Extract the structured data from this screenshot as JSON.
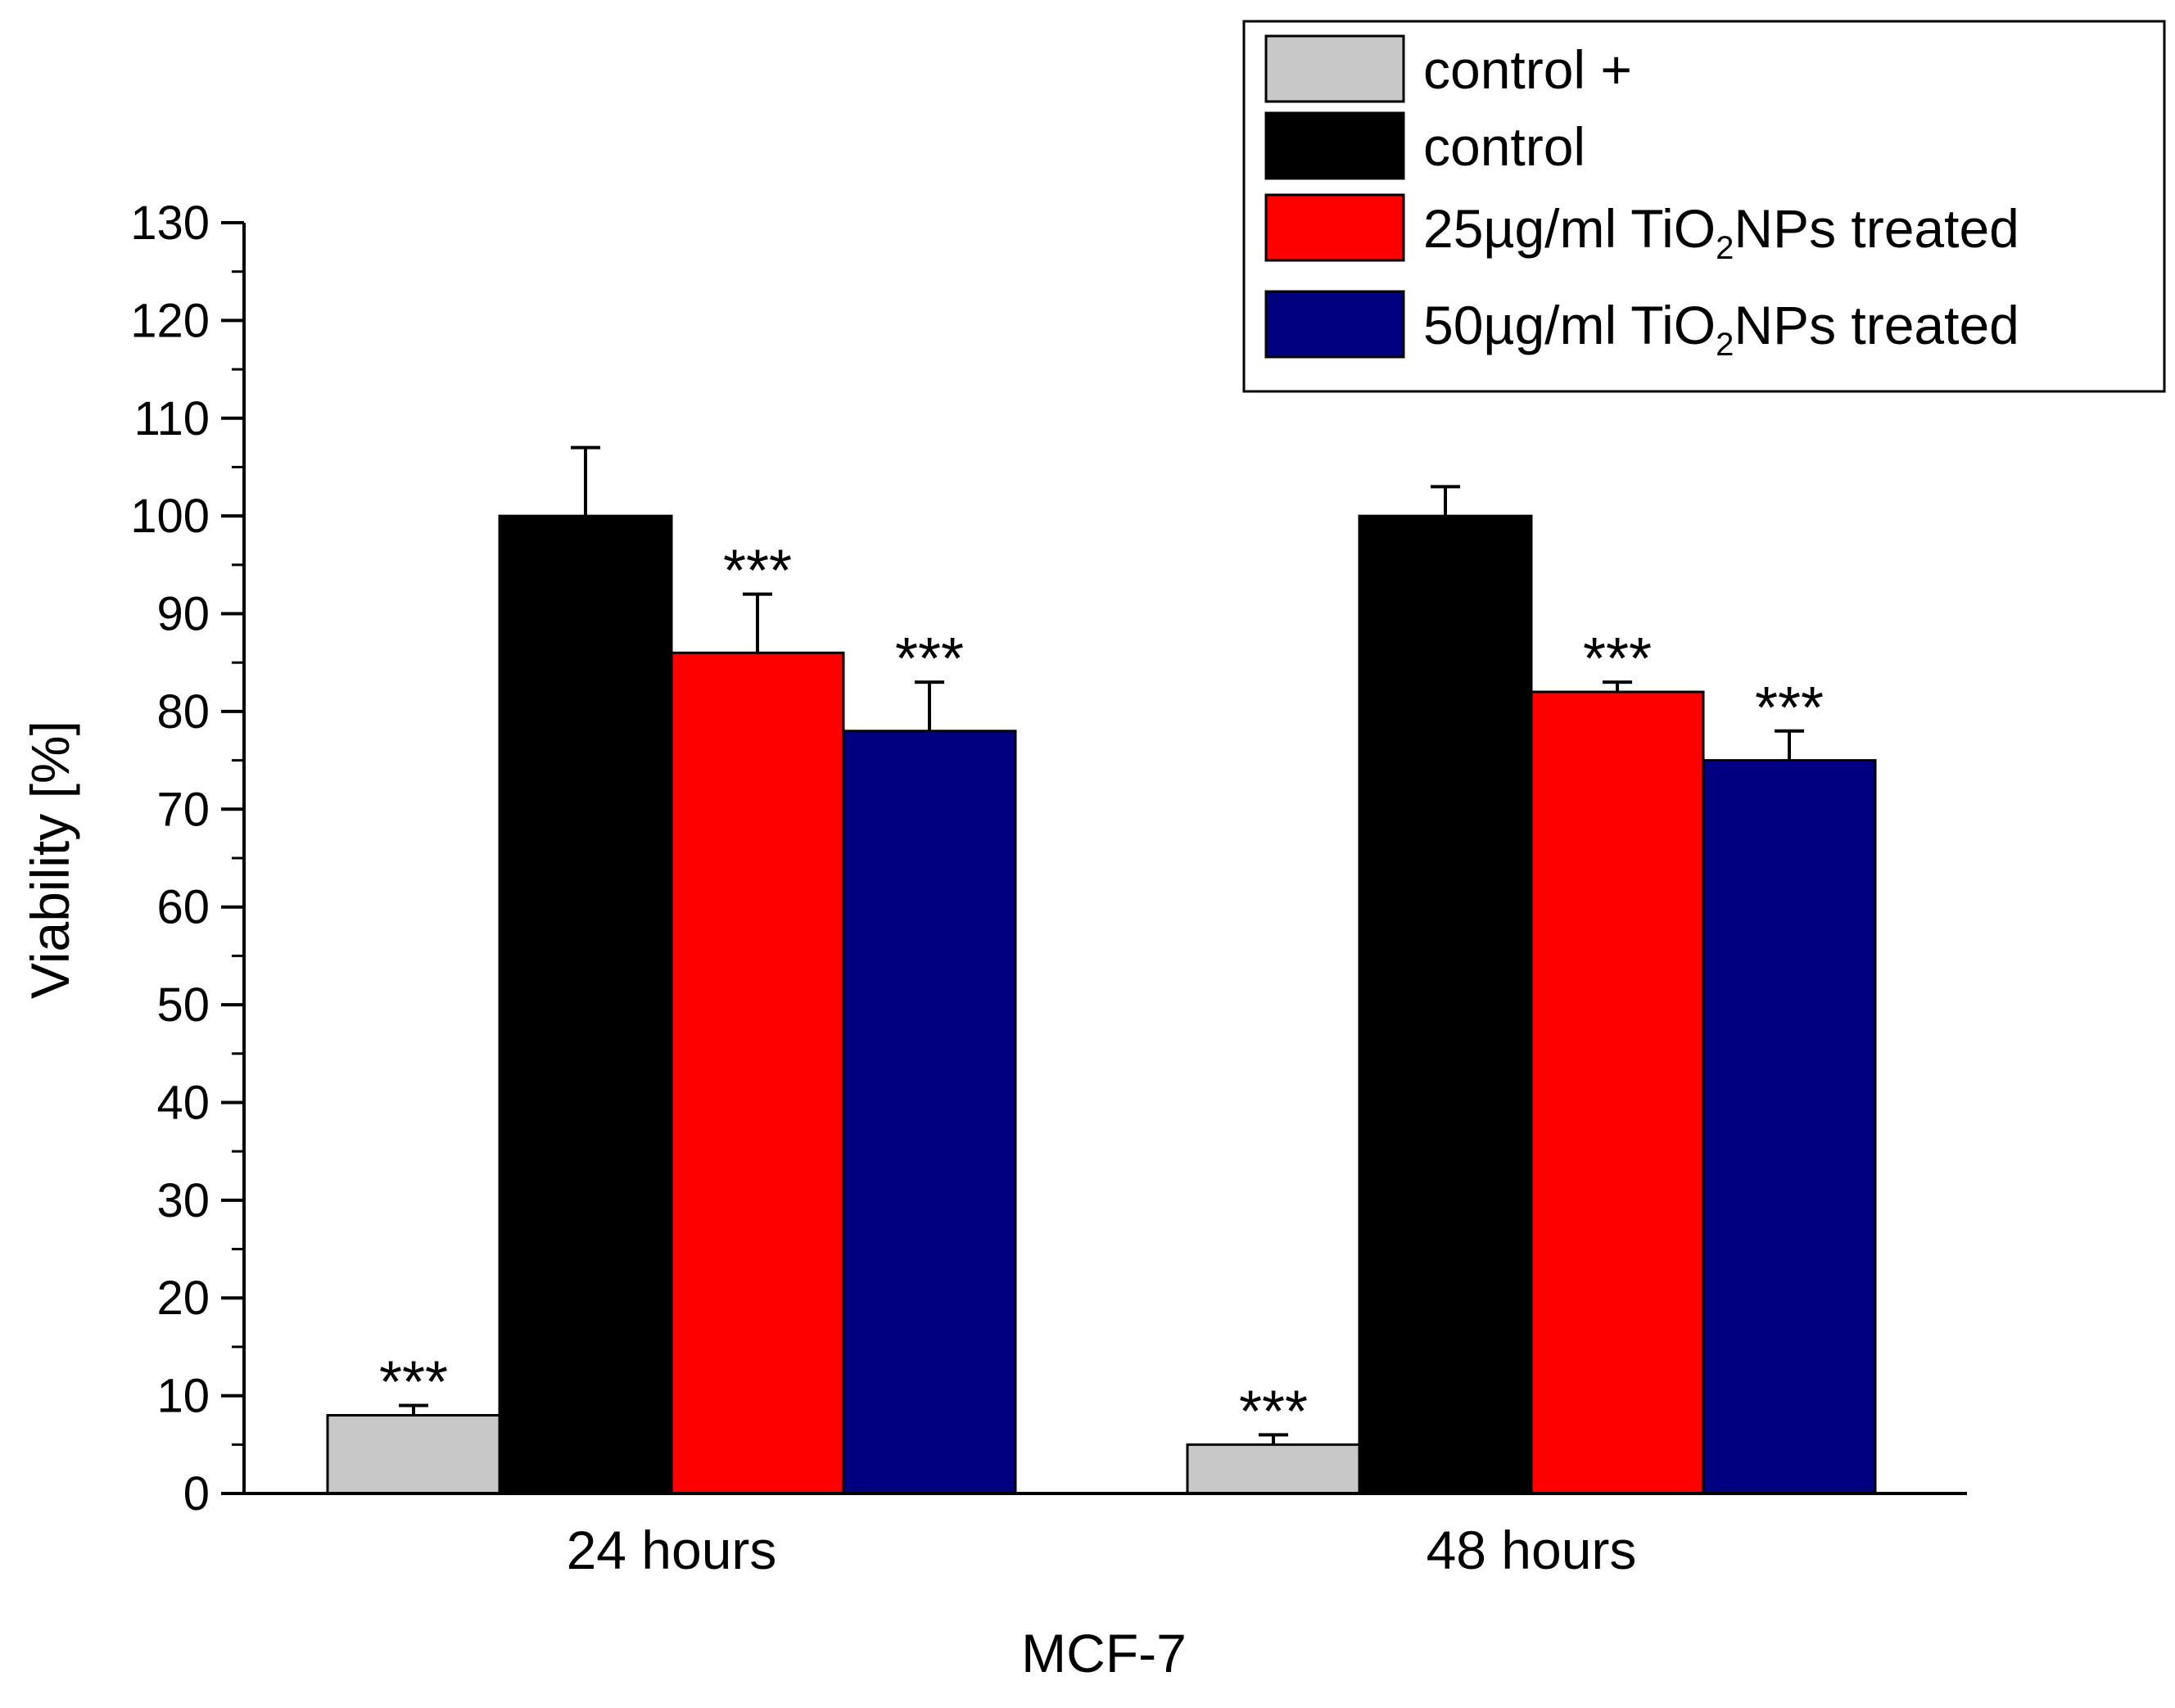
{
  "chart_data": {
    "type": "bar",
    "title": "",
    "xlabel": "MCF-7",
    "ylabel": "Viability [%]",
    "ylim": [
      0,
      130
    ],
    "yticks": [
      0,
      10,
      20,
      30,
      40,
      50,
      60,
      70,
      80,
      90,
      100,
      110,
      120,
      130
    ],
    "categories": [
      "24 hours",
      "48 hours"
    ],
    "series": [
      {
        "name": "control +",
        "color": "#c8c8c8",
        "values": [
          8,
          5
        ],
        "errors": [
          1,
          1
        ],
        "significance": [
          "***",
          "***"
        ]
      },
      {
        "name": "control",
        "color": "#000000",
        "values": [
          100,
          100
        ],
        "errors": [
          7,
          3
        ],
        "significance": [
          "",
          ""
        ]
      },
      {
        "name": "25µg/ml TiO2NPs treated",
        "color": "#ff0000",
        "values": [
          86,
          82
        ],
        "errors": [
          6,
          1
        ],
        "significance": [
          "***",
          "***"
        ]
      },
      {
        "name": "50µg/ml TiO2NPs treated",
        "color": "#000080",
        "values": [
          78,
          75
        ],
        "errors": [
          5,
          3
        ],
        "significance": [
          "***",
          "***"
        ]
      }
    ],
    "legend": {
      "position": "top-right",
      "entries": [
        {
          "pre": "control +",
          "sub": "",
          "post": ""
        },
        {
          "pre": "control",
          "sub": "",
          "post": ""
        },
        {
          "pre": "25µg/ml TiO",
          "sub": "2",
          "post": "NPs treated"
        },
        {
          "pre": "50µg/ml TiO",
          "sub": "2",
          "post": "NPs treated"
        }
      ]
    }
  }
}
